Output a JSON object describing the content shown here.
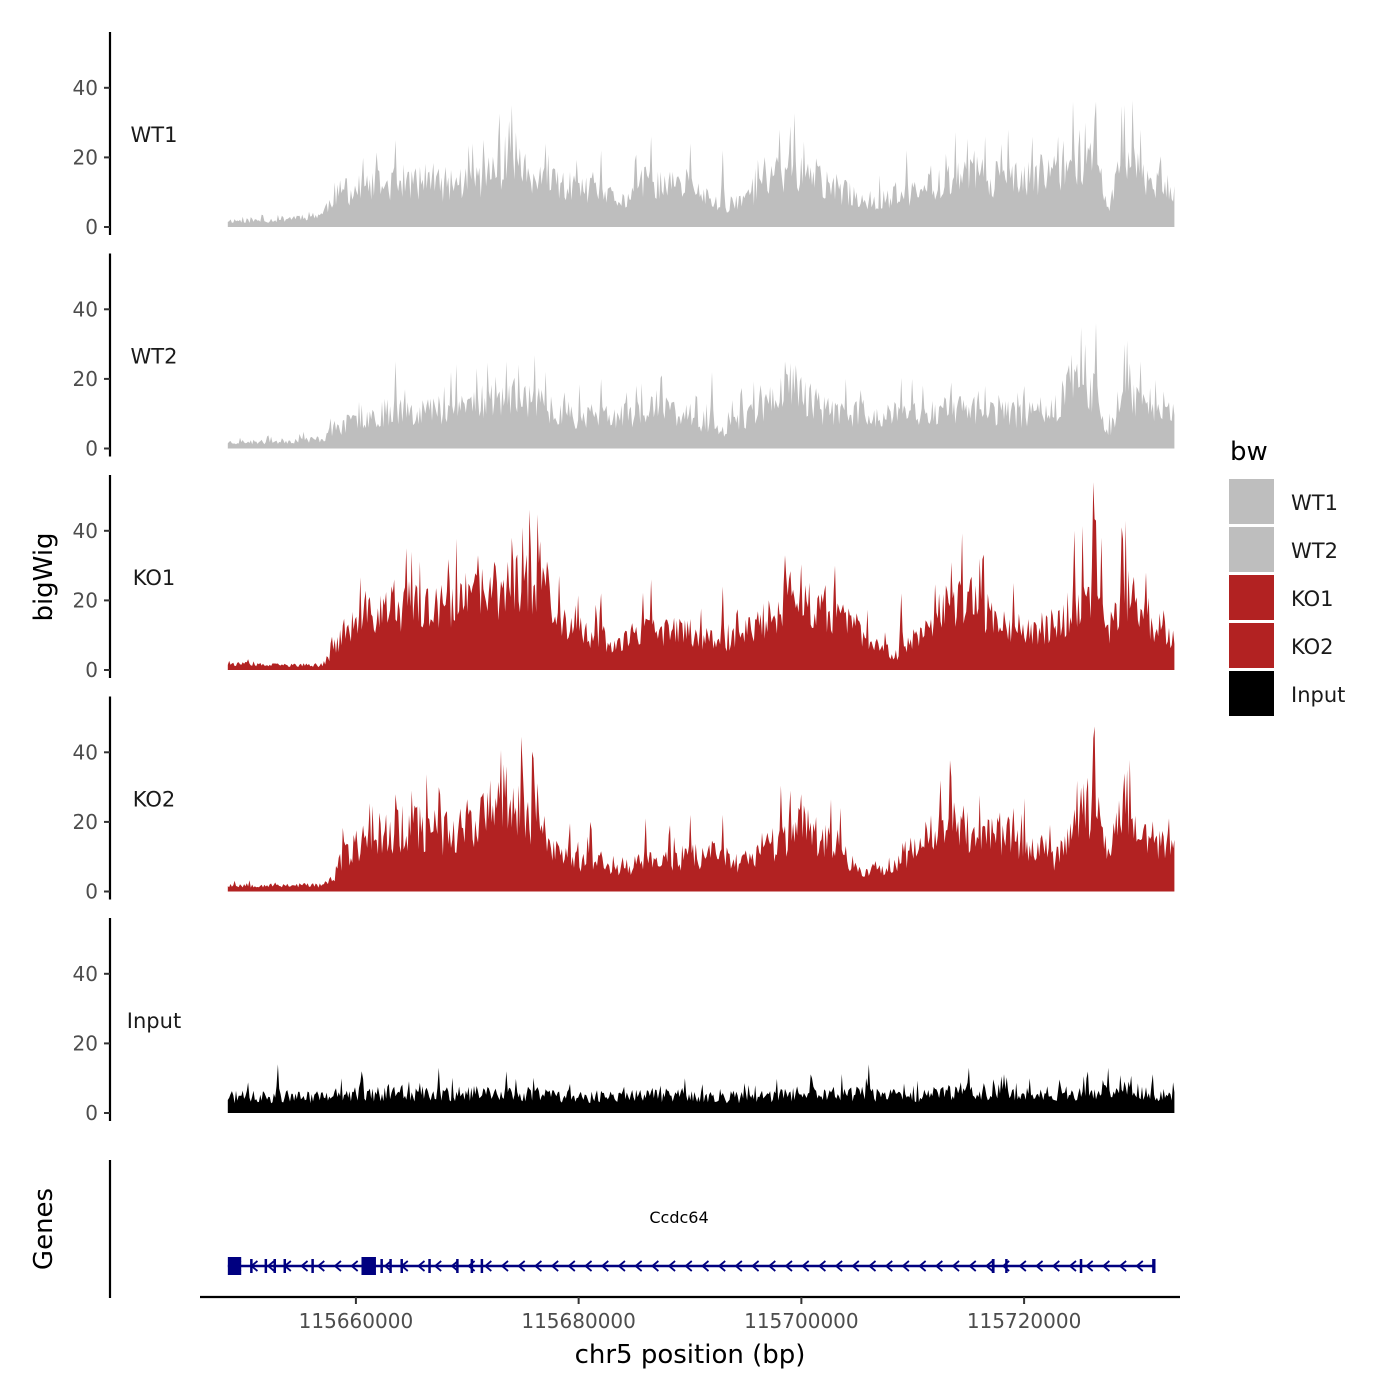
{
  "chart_data": {
    "type": "area",
    "title": "",
    "xlabel": "chr5 position (bp)",
    "ylabel": "bigWig",
    "genes_label": "Genes",
    "xlim": [
      115646000,
      115734000
    ],
    "data_range": [
      115648500,
      115733500
    ],
    "ylim": [
      0,
      55
    ],
    "yticks": [
      0,
      20,
      40
    ],
    "xticks": [
      115660000,
      115680000,
      115700000,
      115720000
    ],
    "xtick_labels": [
      "115660000",
      "115680000",
      "115700000",
      "115720000"
    ],
    "legend": {
      "title": "bw",
      "position": "right",
      "entries": [
        {
          "name": "WT1",
          "color": "#bebebe"
        },
        {
          "name": "WT2",
          "color": "#bebebe"
        },
        {
          "name": "KO1",
          "color": "#b22222"
        },
        {
          "name": "KO2",
          "color": "#b22222"
        },
        {
          "name": "Input",
          "color": "#000000"
        }
      ]
    },
    "series": [
      {
        "name": "WT1",
        "color": "#bebebe",
        "seed": 11,
        "anchors": [
          [
            115648500,
            2
          ],
          [
            115652000,
            2
          ],
          [
            115657000,
            4
          ],
          [
            115658000,
            10
          ],
          [
            115661000,
            12
          ],
          [
            115664000,
            14
          ],
          [
            115667000,
            13
          ],
          [
            115670000,
            14
          ],
          [
            115672000,
            16
          ],
          [
            115674000,
            22
          ],
          [
            115676000,
            14
          ],
          [
            115680000,
            12
          ],
          [
            115684000,
            8
          ],
          [
            115686000,
            14
          ],
          [
            115690000,
            12
          ],
          [
            115693000,
            6
          ],
          [
            115697000,
            14
          ],
          [
            115699000,
            18
          ],
          [
            115703000,
            12
          ],
          [
            115706000,
            8
          ],
          [
            115710000,
            10
          ],
          [
            115713000,
            15
          ],
          [
            115716000,
            16
          ],
          [
            115720000,
            14
          ],
          [
            115723000,
            18
          ],
          [
            115725000,
            22
          ],
          [
            115726500,
            20
          ],
          [
            115727500,
            6
          ],
          [
            115729000,
            22
          ],
          [
            115731000,
            16
          ],
          [
            115733500,
            12
          ]
        ],
        "peaks": [
          [
            115674000,
            35
          ],
          [
            115663500,
            25
          ],
          [
            115670500,
            24
          ],
          [
            115677000,
            24
          ],
          [
            115682000,
            22
          ],
          [
            115686500,
            26
          ],
          [
            115690000,
            24
          ],
          [
            115693000,
            22
          ],
          [
            115698000,
            28
          ],
          [
            115699000,
            29
          ],
          [
            115709500,
            22
          ],
          [
            115713000,
            21
          ],
          [
            115716500,
            26
          ],
          [
            115723000,
            26
          ],
          [
            115725500,
            30
          ],
          [
            115726500,
            36
          ],
          [
            115729000,
            35
          ],
          [
            115730500,
            28
          ]
        ]
      },
      {
        "name": "WT2",
        "color": "#bebebe",
        "seed": 23,
        "anchors": [
          [
            115648500,
            2
          ],
          [
            115652000,
            2
          ],
          [
            115657000,
            3
          ],
          [
            115658000,
            6
          ],
          [
            115661000,
            10
          ],
          [
            115664000,
            12
          ],
          [
            115667000,
            12
          ],
          [
            115670000,
            14
          ],
          [
            115672000,
            15
          ],
          [
            115675000,
            16
          ],
          [
            115678000,
            12
          ],
          [
            115680000,
            10
          ],
          [
            115684000,
            10
          ],
          [
            115687000,
            13
          ],
          [
            115690000,
            10
          ],
          [
            115693000,
            6
          ],
          [
            115697000,
            14
          ],
          [
            115699000,
            20
          ],
          [
            115702000,
            12
          ],
          [
            115706000,
            10
          ],
          [
            115710000,
            11
          ],
          [
            115713000,
            12
          ],
          [
            115716000,
            12
          ],
          [
            115720000,
            10
          ],
          [
            115723000,
            14
          ],
          [
            115725000,
            20
          ],
          [
            115726500,
            18
          ],
          [
            115727500,
            4
          ],
          [
            115729000,
            18
          ],
          [
            115731000,
            14
          ],
          [
            115733500,
            10
          ]
        ],
        "peaks": [
          [
            115663500,
            25
          ],
          [
            115668500,
            22
          ],
          [
            115673500,
            25
          ],
          [
            115677000,
            22
          ],
          [
            115682000,
            20
          ],
          [
            115687500,
            21
          ],
          [
            115692000,
            22
          ],
          [
            115698500,
            25
          ],
          [
            115699500,
            24
          ],
          [
            115704000,
            20
          ],
          [
            115710000,
            20
          ],
          [
            115713500,
            19
          ],
          [
            115716500,
            18
          ],
          [
            115720000,
            18
          ],
          [
            115724000,
            24
          ],
          [
            115725500,
            30
          ],
          [
            115726500,
            36
          ],
          [
            115729000,
            30
          ],
          [
            115730500,
            25
          ]
        ]
      },
      {
        "name": "KO1",
        "color": "#b22222",
        "seed": 37,
        "anchors": [
          [
            115648500,
            2
          ],
          [
            115652000,
            1.5
          ],
          [
            115657000,
            1.5
          ],
          [
            115657500,
            4
          ],
          [
            115659000,
            12
          ],
          [
            115662000,
            18
          ],
          [
            115665000,
            20
          ],
          [
            115667000,
            18
          ],
          [
            115670000,
            22
          ],
          [
            115673000,
            25
          ],
          [
            115676000,
            28
          ],
          [
            115677500,
            20
          ],
          [
            115680000,
            12
          ],
          [
            115683000,
            8
          ],
          [
            115686000,
            12
          ],
          [
            115690000,
            12
          ],
          [
            115693000,
            8
          ],
          [
            115697000,
            16
          ],
          [
            115699000,
            22
          ],
          [
            115703000,
            18
          ],
          [
            115706000,
            10
          ],
          [
            115708500,
            4
          ],
          [
            115711000,
            14
          ],
          [
            115714000,
            22
          ],
          [
            115716000,
            20
          ],
          [
            115720000,
            12
          ],
          [
            115723000,
            14
          ],
          [
            115725000,
            22
          ],
          [
            115726500,
            24
          ],
          [
            115727500,
            10
          ],
          [
            115729000,
            26
          ],
          [
            115731000,
            16
          ],
          [
            115733500,
            10
          ]
        ],
        "peaks": [
          [
            115664500,
            35
          ],
          [
            115671000,
            33
          ],
          [
            115674000,
            38
          ],
          [
            115675000,
            41
          ],
          [
            115676500,
            37
          ],
          [
            115682000,
            22
          ],
          [
            115686500,
            26
          ],
          [
            115693000,
            24
          ],
          [
            115698500,
            33
          ],
          [
            115703000,
            30
          ],
          [
            115709000,
            22
          ],
          [
            115713500,
            31
          ],
          [
            115716000,
            32
          ],
          [
            115719000,
            25
          ],
          [
            115724500,
            40
          ],
          [
            115726200,
            54
          ],
          [
            115727000,
            38
          ],
          [
            115728800,
            41
          ],
          [
            115731000,
            28
          ]
        ]
      },
      {
        "name": "KO2",
        "color": "#b22222",
        "seed": 53,
        "anchors": [
          [
            115648500,
            2
          ],
          [
            115652000,
            2
          ],
          [
            115657000,
            2
          ],
          [
            115658000,
            4
          ],
          [
            115659000,
            12
          ],
          [
            115662000,
            18
          ],
          [
            115665000,
            20
          ],
          [
            115668000,
            18
          ],
          [
            115670000,
            22
          ],
          [
            115673000,
            25
          ],
          [
            115676000,
            24
          ],
          [
            115677500,
            14
          ],
          [
            115680000,
            10
          ],
          [
            115684000,
            8
          ],
          [
            115688000,
            10
          ],
          [
            115692000,
            12
          ],
          [
            115695000,
            8
          ],
          [
            115697000,
            14
          ],
          [
            115700000,
            20
          ],
          [
            115703000,
            16
          ],
          [
            115705000,
            6
          ],
          [
            115708000,
            8
          ],
          [
            115711000,
            16
          ],
          [
            115714000,
            22
          ],
          [
            115716000,
            18
          ],
          [
            115720000,
            16
          ],
          [
            115723000,
            10
          ],
          [
            115725000,
            24
          ],
          [
            115726500,
            28
          ],
          [
            115727500,
            10
          ],
          [
            115729000,
            26
          ],
          [
            115731000,
            16
          ],
          [
            115733500,
            14
          ]
        ],
        "peaks": [
          [
            115663500,
            28
          ],
          [
            115665000,
            29
          ],
          [
            115667500,
            30
          ],
          [
            115672000,
            32
          ],
          [
            115673500,
            36
          ],
          [
            115675000,
            36
          ],
          [
            115681000,
            20
          ],
          [
            115686000,
            21
          ],
          [
            115690000,
            22
          ],
          [
            115693000,
            22
          ],
          [
            115699000,
            29
          ],
          [
            115700000,
            28
          ],
          [
            115703500,
            24
          ],
          [
            115712500,
            32
          ],
          [
            115713500,
            33
          ],
          [
            115719000,
            24
          ],
          [
            115726200,
            44
          ],
          [
            115729000,
            34
          ],
          [
            115733000,
            21
          ]
        ]
      },
      {
        "name": "Input",
        "color": "#000000",
        "seed": 71,
        "anchors": [
          [
            115648500,
            5
          ],
          [
            115655000,
            5
          ],
          [
            115660000,
            6
          ],
          [
            115665000,
            6
          ],
          [
            115670000,
            6
          ],
          [
            115675000,
            6
          ],
          [
            115680000,
            5
          ],
          [
            115685000,
            6
          ],
          [
            115690000,
            5
          ],
          [
            115695000,
            5
          ],
          [
            115700000,
            6
          ],
          [
            115705000,
            6
          ],
          [
            115710000,
            5
          ],
          [
            115715000,
            7
          ],
          [
            115720000,
            6
          ],
          [
            115725000,
            6
          ],
          [
            115728000,
            8
          ],
          [
            115733500,
            5
          ]
        ],
        "peaks": [
          [
            115653000,
            14
          ],
          [
            115660500,
            12
          ],
          [
            115667500,
            13
          ],
          [
            115673500,
            12
          ],
          [
            115689500,
            10
          ],
          [
            115701000,
            10
          ],
          [
            115706000,
            14
          ],
          [
            115715000,
            13
          ],
          [
            115720500,
            10
          ],
          [
            115727500,
            13
          ]
        ]
      }
    ],
    "gene_track": {
      "gene_name": "Ccdc64",
      "strand": "-",
      "color": "#000080",
      "start": 115648500,
      "end": 115731800,
      "exons": [
        [
          115648500,
          115649700
        ],
        [
          115660500,
          115661800
        ],
        [
          115650500,
          115650600
        ],
        [
          115651800,
          115651950
        ],
        [
          115652600,
          115652700
        ],
        [
          115653500,
          115653600
        ],
        [
          115656000,
          115656150
        ],
        [
          115662200,
          115662350
        ],
        [
          115663000,
          115663150
        ],
        [
          115664000,
          115664150
        ],
        [
          115666500,
          115666650
        ],
        [
          115669000,
          115669150
        ],
        [
          115670300,
          115670500
        ],
        [
          115671200,
          115671350
        ],
        [
          115717100,
          115717350
        ],
        [
          115718300,
          115718450
        ],
        [
          115725000,
          115725150
        ],
        [
          115731500,
          115731800
        ]
      ],
      "arrow_spacing_bp": 1500
    }
  }
}
